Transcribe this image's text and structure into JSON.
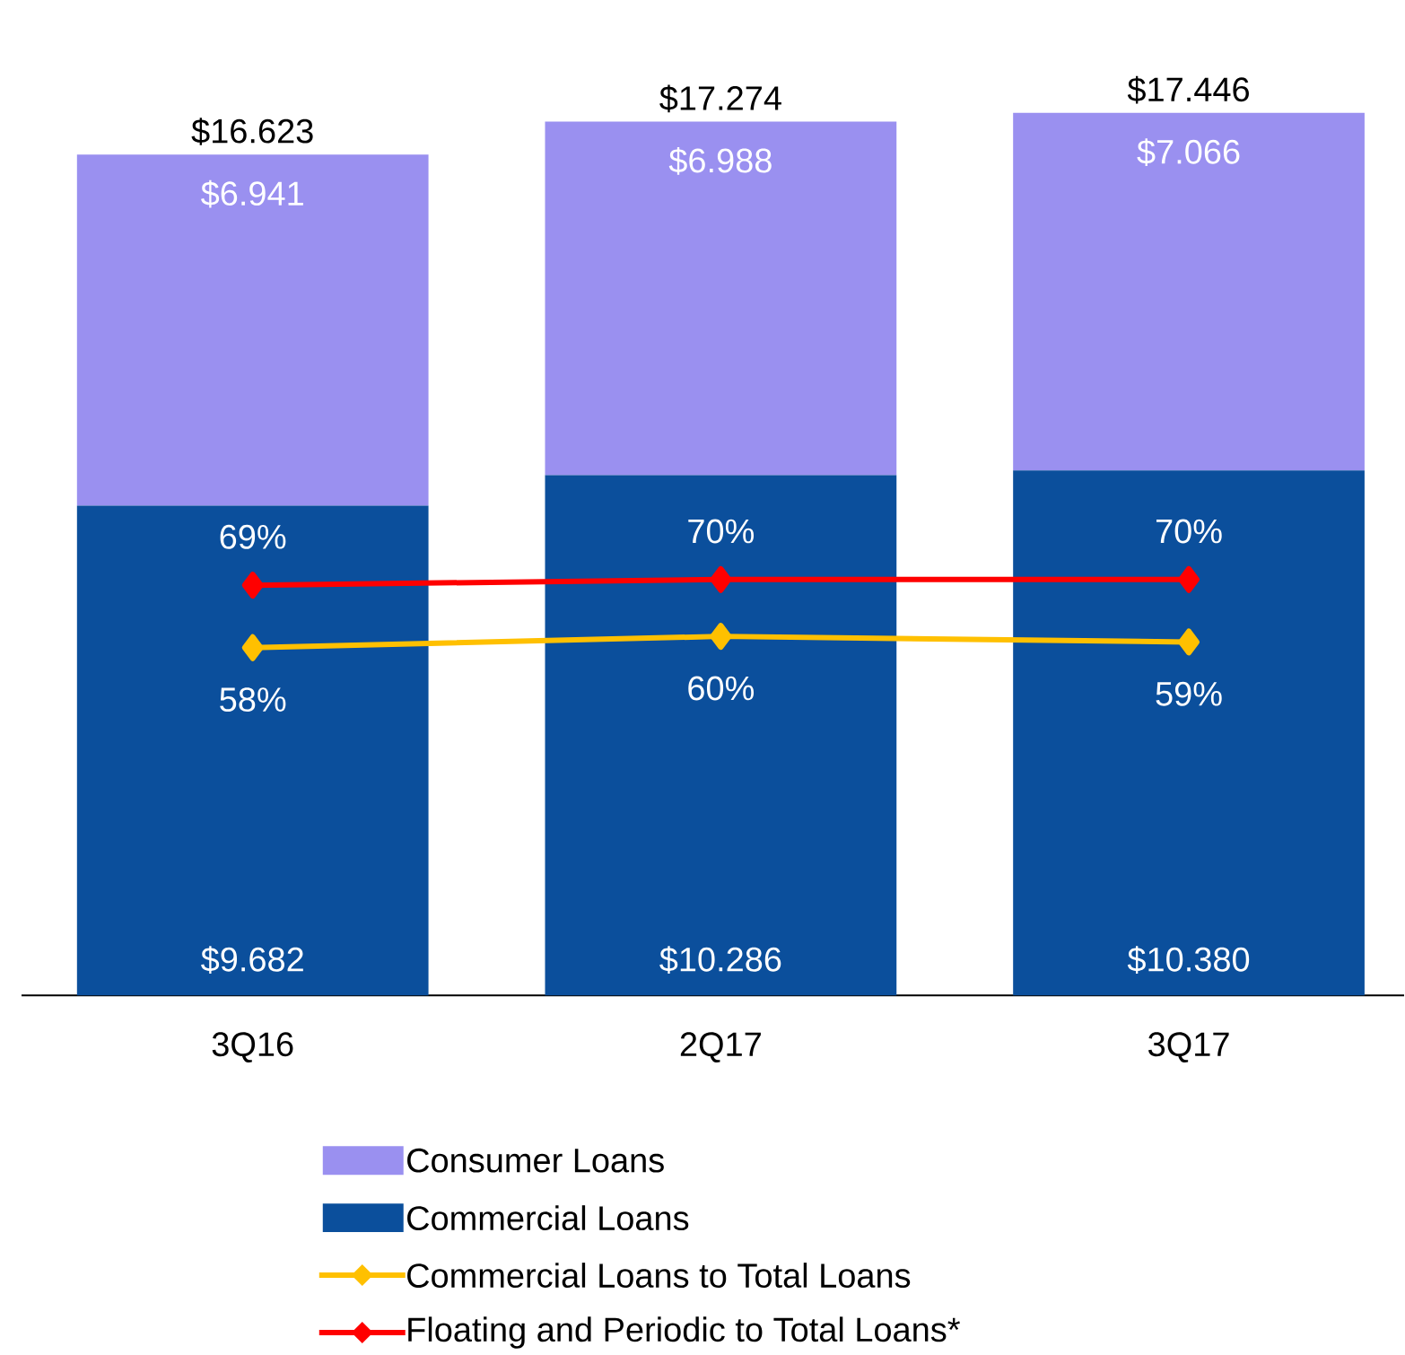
{
  "chart_data": {
    "type": "bar",
    "stacked": true,
    "categories": [
      "3Q16",
      "2Q17",
      "3Q17"
    ],
    "series": [
      {
        "name": "Commercial Loans",
        "color": "#0b4f9c",
        "values": [
          9.682,
          10.286,
          10.38
        ],
        "value_labels": [
          "$9.682",
          "$10.286",
          "$10.380"
        ]
      },
      {
        "name": "Consumer Loans",
        "color": "#9a90f0",
        "values": [
          6.941,
          6.988,
          7.066
        ],
        "value_labels": [
          "$6.941",
          "$6.988",
          "$7.066"
        ]
      },
      {
        "name": "Commercial Loans to Total Loans",
        "type": "line",
        "axis": "y2",
        "color": "#ffc000",
        "values": [
          58,
          60,
          59
        ],
        "value_labels": [
          "58%",
          "60%",
          "59%"
        ]
      },
      {
        "name": "Floating and Periodic to Total Loans*",
        "type": "line",
        "axis": "y2",
        "color": "#ff0000",
        "values": [
          69,
          70,
          70
        ],
        "value_labels": [
          "69%",
          "70%",
          "70%"
        ]
      }
    ],
    "totals": [
      "$16.623",
      "$17.274",
      "$17.446"
    ],
    "marker": "diamond",
    "legend": "bottom",
    "tick_labels": "x"
  }
}
